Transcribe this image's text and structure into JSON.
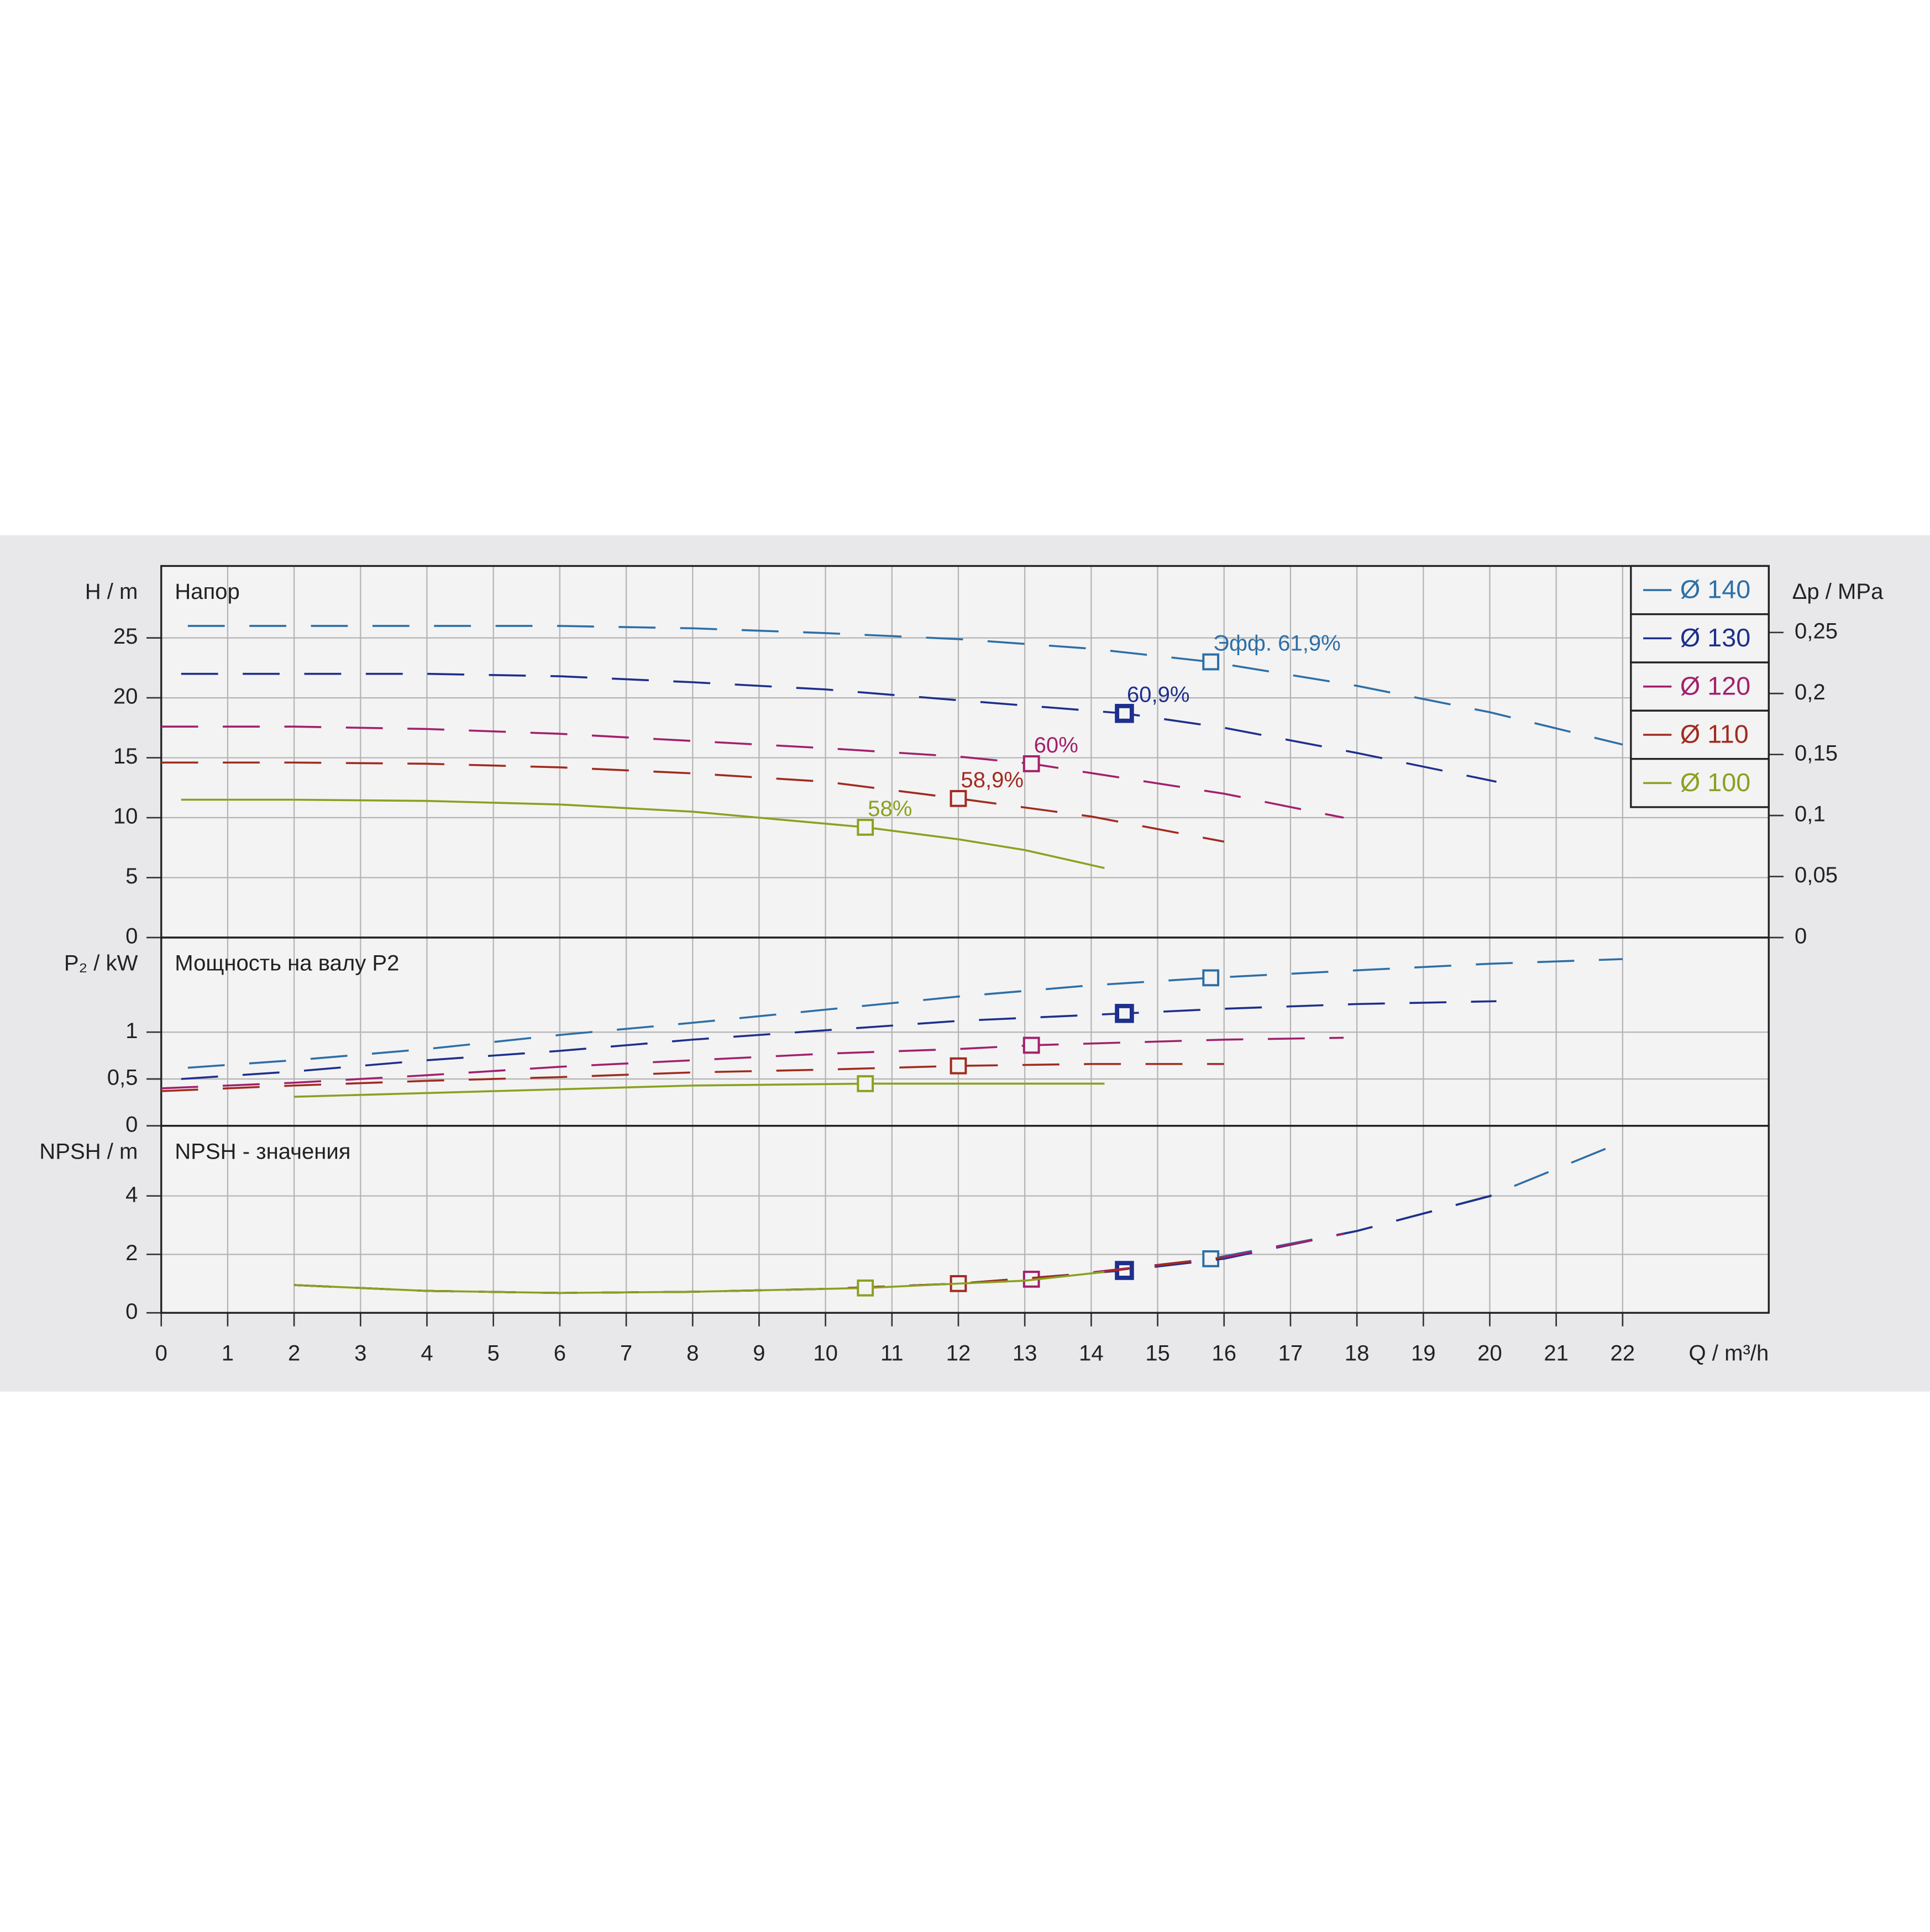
{
  "chart_data": {
    "type": "line",
    "x_label": "Q / m³/h",
    "xlim": [
      0,
      24.2
    ],
    "xticks": [
      0,
      1,
      2,
      3,
      4,
      5,
      6,
      7,
      8,
      9,
      10,
      11,
      12,
      13,
      14,
      15,
      16,
      17,
      18,
      19,
      20,
      21,
      22
    ],
    "grid": true,
    "legend": "upper right",
    "panels": [
      {
        "y_label": "H / m",
        "title": "Напор",
        "ylim": [
          0,
          31
        ],
        "yticks": [
          0,
          5,
          10,
          15,
          20,
          25
        ],
        "y2_label": "Δp / MPa",
        "y2lim": [
          0,
          0.3045
        ],
        "y2ticks": [
          0,
          {
            "value": 0.05,
            "label": "0,05"
          },
          {
            "value": 0.1,
            "label": "0,1"
          },
          {
            "value": 0.15,
            "label": "0,15"
          },
          {
            "value": 0.2,
            "label": "0,2"
          },
          {
            "value": 0.25,
            "label": "0,25"
          }
        ]
      },
      {
        "y_label": "P₂ / kW",
        "title": "Мощность на валу P2",
        "ylim": [
          0,
          2.01
        ],
        "yticks": [
          0,
          {
            "value": 0.5,
            "label": "0,5"
          },
          1
        ]
      },
      {
        "y_label": "NPSH / m",
        "title": "NPSH - значения",
        "ylim": [
          0,
          6.4
        ],
        "yticks": [
          0,
          2,
          4
        ]
      }
    ],
    "series": [
      {
        "name": "Ø 140",
        "color": "#2d6fa6",
        "line_style": "dashed",
        "x": [
          0.4,
          2,
          4,
          6,
          8,
          10,
          12,
          14,
          15.8,
          18,
          20,
          22
        ],
        "values": [
          [
            26,
            26,
            26,
            26,
            25.8,
            25.4,
            24.9,
            24.1,
            23,
            21,
            18.8,
            16.1
          ],
          [
            0.62,
            0.7,
            0.82,
            0.97,
            1.1,
            1.24,
            1.38,
            1.5,
            1.58,
            1.66,
            1.73,
            1.78
          ],
          [
            null,
            0.95,
            0.75,
            0.68,
            0.72,
            0.82,
            1.0,
            1.35,
            1.85,
            2.8,
            4.0,
            5.85
          ]
        ],
        "duty_point": {
          "x": 15.8,
          "values": [
            23,
            1.58,
            1.85
          ],
          "label": "Эфф.  61,9%",
          "selected": false
        }
      },
      {
        "name": "Ø 130",
        "color": "#1e2f8c",
        "line_style": "dashed",
        "x": [
          0.3,
          2,
          4,
          6,
          8,
          10,
          12,
          14.5,
          16,
          18,
          20.1
        ],
        "values": [
          [
            22,
            22,
            22,
            21.8,
            21.3,
            20.7,
            19.8,
            18.7,
            17.5,
            15.4,
            13
          ],
          [
            0.5,
            0.58,
            0.7,
            0.8,
            0.92,
            1.02,
            1.12,
            1.2,
            1.25,
            1.3,
            1.33
          ],
          [
            null,
            0.95,
            0.75,
            0.68,
            0.72,
            0.82,
            1.0,
            1.45,
            1.85,
            2.8,
            4.05
          ]
        ],
        "duty_point": {
          "x": 14.5,
          "values": [
            18.7,
            1.2,
            1.45
          ],
          "label": "60,9%",
          "selected": true
        }
      },
      {
        "name": "Ø 120",
        "color": "#a3206b",
        "line_style": "dashed",
        "x": [
          0,
          2,
          4,
          6,
          8,
          10,
          12,
          13.1,
          16,
          17.8
        ],
        "values": [
          [
            17.6,
            17.6,
            17.4,
            17,
            16.4,
            15.8,
            15.1,
            14.5,
            12,
            10
          ],
          [
            0.4,
            0.46,
            0.54,
            0.63,
            0.7,
            0.77,
            0.82,
            0.86,
            0.92,
            0.94
          ],
          [
            null,
            0.95,
            0.75,
            0.68,
            0.72,
            0.82,
            1.0,
            1.15,
            1.9,
            2.7
          ]
        ],
        "duty_point": {
          "x": 13.1,
          "values": [
            14.5,
            0.86,
            1.15
          ],
          "label": "60%",
          "selected": false
        }
      },
      {
        "name": "Ø 110",
        "color": "#a12b1f",
        "line_style": "dashed",
        "x": [
          0,
          2,
          4,
          6,
          8,
          10,
          12,
          14,
          16
        ],
        "values": [
          [
            14.6,
            14.6,
            14.5,
            14.2,
            13.7,
            13,
            11.6,
            10.1,
            8
          ],
          [
            0.37,
            0.43,
            0.48,
            0.52,
            0.57,
            0.6,
            0.64,
            0.66,
            0.66
          ],
          [
            null,
            0.95,
            0.75,
            0.68,
            0.72,
            0.82,
            1.0,
            1.35,
            1.9
          ]
        ],
        "duty_point": {
          "x": 12,
          "values": [
            11.6,
            0.64,
            1.0
          ],
          "label": "58,9%",
          "selected": false
        }
      },
      {
        "name": "Ø 100",
        "color": "#8aa11f",
        "line_style": "solid",
        "x": [
          0.3,
          2,
          4,
          6,
          8,
          10.6,
          12,
          13,
          14.2
        ],
        "values": [
          [
            11.5,
            11.5,
            11.4,
            11.1,
            10.5,
            9.2,
            8.2,
            7.3,
            5.8
          ],
          [
            null,
            0.31,
            0.35,
            0.39,
            0.43,
            0.45,
            0.45,
            0.45,
            0.45
          ],
          [
            null,
            0.95,
            0.75,
            0.68,
            0.72,
            0.85,
            1.0,
            1.1,
            1.4
          ]
        ],
        "duty_point": {
          "x": 10.6,
          "values": [
            9.2,
            0.45,
            0.85
          ],
          "label": "58%",
          "selected": false
        }
      }
    ]
  }
}
